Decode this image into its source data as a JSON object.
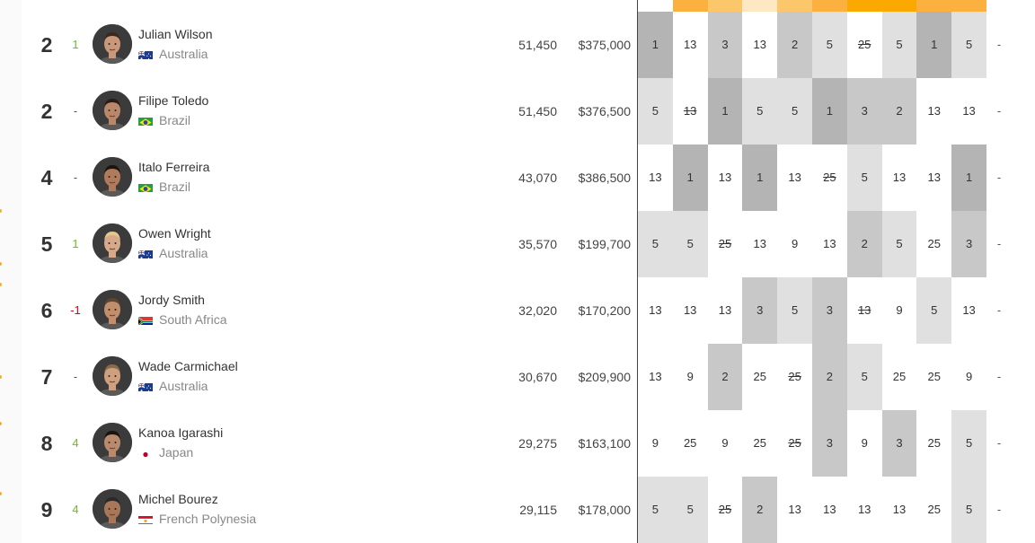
{
  "header_bar_colors": [
    "#ffffff",
    "#fbb040",
    "#fcc66a",
    "#fde8c4",
    "#fcc66a",
    "#fbb040",
    "#fba800",
    "#fba800",
    "#fbb040",
    "#fbb040"
  ],
  "surfers": [
    {
      "rank": "2",
      "change": "1",
      "change_dir": "up",
      "name": "Julian Wilson",
      "country": "Australia",
      "flag": "australia",
      "points": "51,450",
      "prize": "$375,000",
      "results": [
        {
          "v": "1",
          "l": 3
        },
        {
          "v": "13",
          "l": 0
        },
        {
          "v": "3",
          "l": 2
        },
        {
          "v": "13",
          "l": 0
        },
        {
          "v": "2",
          "l": 2
        },
        {
          "v": "5",
          "l": 1
        },
        {
          "v": "25",
          "l": 0,
          "drop": true
        },
        {
          "v": "5",
          "l": 1
        },
        {
          "v": "1",
          "l": 3
        },
        {
          "v": "5",
          "l": 1
        }
      ],
      "extra": "-"
    },
    {
      "rank": "2",
      "change": "-",
      "change_dir": "none",
      "name": "Filipe Toledo",
      "country": "Brazil",
      "flag": "brazil",
      "points": "51,450",
      "prize": "$376,500",
      "results": [
        {
          "v": "5",
          "l": 1
        },
        {
          "v": "13",
          "l": 0,
          "drop": true
        },
        {
          "v": "1",
          "l": 3
        },
        {
          "v": "5",
          "l": 1
        },
        {
          "v": "5",
          "l": 1
        },
        {
          "v": "1",
          "l": 3
        },
        {
          "v": "3",
          "l": 2
        },
        {
          "v": "2",
          "l": 2
        },
        {
          "v": "13",
          "l": 0
        },
        {
          "v": "13",
          "l": 0
        }
      ],
      "extra": "-"
    },
    {
      "rank": "4",
      "change": "-",
      "change_dir": "none",
      "name": "Italo Ferreira",
      "country": "Brazil",
      "flag": "brazil",
      "points": "43,070",
      "prize": "$386,500",
      "results": [
        {
          "v": "13",
          "l": 0
        },
        {
          "v": "1",
          "l": 3
        },
        {
          "v": "13",
          "l": 0
        },
        {
          "v": "1",
          "l": 3
        },
        {
          "v": "13",
          "l": 0
        },
        {
          "v": "25",
          "l": 0,
          "drop": true
        },
        {
          "v": "5",
          "l": 1
        },
        {
          "v": "13",
          "l": 0
        },
        {
          "v": "13",
          "l": 0
        },
        {
          "v": "1",
          "l": 3
        }
      ],
      "extra": "-"
    },
    {
      "rank": "5",
      "change": "1",
      "change_dir": "up",
      "name": "Owen Wright",
      "country": "Australia",
      "flag": "australia",
      "points": "35,570",
      "prize": "$199,700",
      "results": [
        {
          "v": "5",
          "l": 1
        },
        {
          "v": "5",
          "l": 1
        },
        {
          "v": "25",
          "l": 0,
          "drop": true
        },
        {
          "v": "13",
          "l": 0
        },
        {
          "v": "9",
          "l": 0
        },
        {
          "v": "13",
          "l": 0
        },
        {
          "v": "2",
          "l": 2
        },
        {
          "v": "5",
          "l": 1
        },
        {
          "v": "25",
          "l": 0
        },
        {
          "v": "3",
          "l": 2
        }
      ],
      "extra": "-"
    },
    {
      "rank": "6",
      "change": "-1",
      "change_dir": "down",
      "name": "Jordy Smith",
      "country": "South Africa",
      "flag": "south-africa",
      "points": "32,020",
      "prize": "$170,200",
      "results": [
        {
          "v": "13",
          "l": 0
        },
        {
          "v": "13",
          "l": 0
        },
        {
          "v": "13",
          "l": 0
        },
        {
          "v": "3",
          "l": 2
        },
        {
          "v": "5",
          "l": 1
        },
        {
          "v": "3",
          "l": 2
        },
        {
          "v": "13",
          "l": 0,
          "drop": true
        },
        {
          "v": "9",
          "l": 0
        },
        {
          "v": "5",
          "l": 1
        },
        {
          "v": "13",
          "l": 0
        }
      ],
      "extra": "-"
    },
    {
      "rank": "7",
      "change": "-",
      "change_dir": "none",
      "name": "Wade Carmichael",
      "country": "Australia",
      "flag": "australia",
      "points": "30,670",
      "prize": "$209,900",
      "results": [
        {
          "v": "13",
          "l": 0
        },
        {
          "v": "9",
          "l": 0
        },
        {
          "v": "2",
          "l": 2
        },
        {
          "v": "25",
          "l": 0
        },
        {
          "v": "25",
          "l": 0,
          "drop": true
        },
        {
          "v": "2",
          "l": 2
        },
        {
          "v": "5",
          "l": 1
        },
        {
          "v": "25",
          "l": 0
        },
        {
          "v": "25",
          "l": 0
        },
        {
          "v": "9",
          "l": 0
        }
      ],
      "extra": "-"
    },
    {
      "rank": "8",
      "change": "4",
      "change_dir": "up",
      "name": "Kanoa Igarashi",
      "country": "Japan",
      "flag": "japan",
      "points": "29,275",
      "prize": "$163,100",
      "results": [
        {
          "v": "9",
          "l": 0
        },
        {
          "v": "25",
          "l": 0
        },
        {
          "v": "9",
          "l": 0
        },
        {
          "v": "25",
          "l": 0
        },
        {
          "v": "25",
          "l": 0,
          "drop": true
        },
        {
          "v": "3",
          "l": 2
        },
        {
          "v": "9",
          "l": 0
        },
        {
          "v": "3",
          "l": 2
        },
        {
          "v": "25",
          "l": 0
        },
        {
          "v": "5",
          "l": 1
        }
      ],
      "extra": "-"
    },
    {
      "rank": "9",
      "change": "4",
      "change_dir": "up",
      "name": "Michel Bourez",
      "country": "French Polynesia",
      "flag": "french-polynesia",
      "points": "29,115",
      "prize": "$178,000",
      "results": [
        {
          "v": "5",
          "l": 1
        },
        {
          "v": "5",
          "l": 1
        },
        {
          "v": "25",
          "l": 0,
          "drop": true
        },
        {
          "v": "2",
          "l": 2
        },
        {
          "v": "13",
          "l": 0
        },
        {
          "v": "13",
          "l": 0
        },
        {
          "v": "13",
          "l": 0
        },
        {
          "v": "13",
          "l": 0
        },
        {
          "v": "25",
          "l": 0
        },
        {
          "v": "5",
          "l": 1
        }
      ],
      "extra": "-"
    }
  ]
}
